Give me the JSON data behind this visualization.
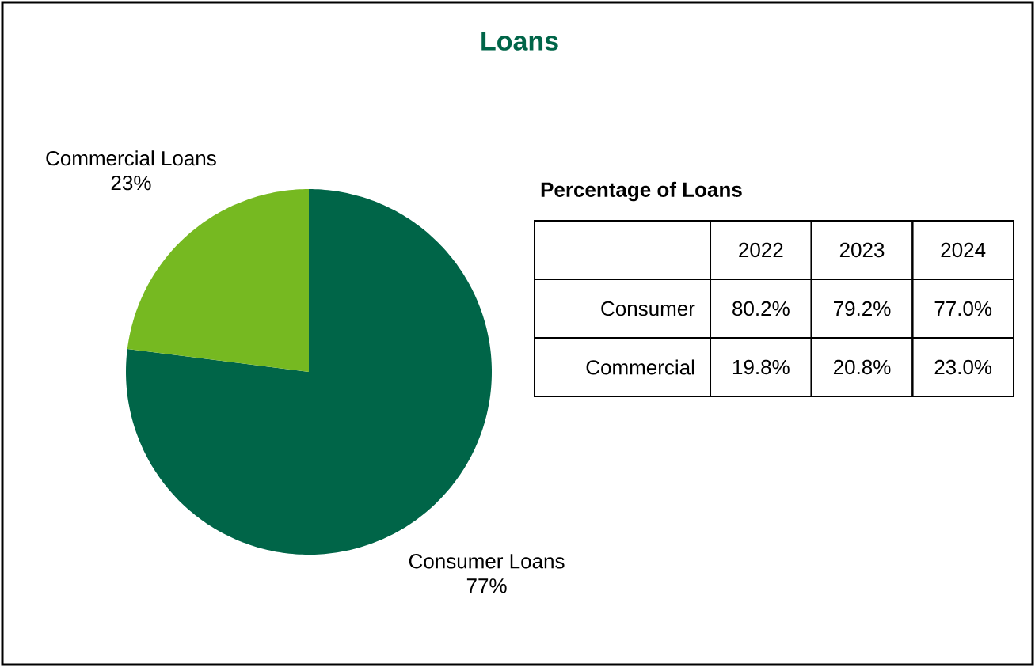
{
  "chart_data": [
    {
      "type": "pie",
      "title": "Loans",
      "categories": [
        "Consumer Loans",
        "Commercial Loans"
      ],
      "values": [
        77,
        23
      ],
      "colors": [
        "#006548",
        "#76b921"
      ],
      "value_labels": [
        "77%",
        "23%"
      ]
    },
    {
      "type": "other",
      "title": "Percentage of Loans",
      "categories": [
        "2022",
        "2023",
        "2024"
      ],
      "y_categories": [
        "Consumer",
        "Commercial"
      ],
      "cell_labels": [
        [
          "80.2%",
          "79.2%",
          "77.0%"
        ],
        [
          "19.8%",
          "20.8%",
          "23.0%"
        ]
      ]
    }
  ]
}
